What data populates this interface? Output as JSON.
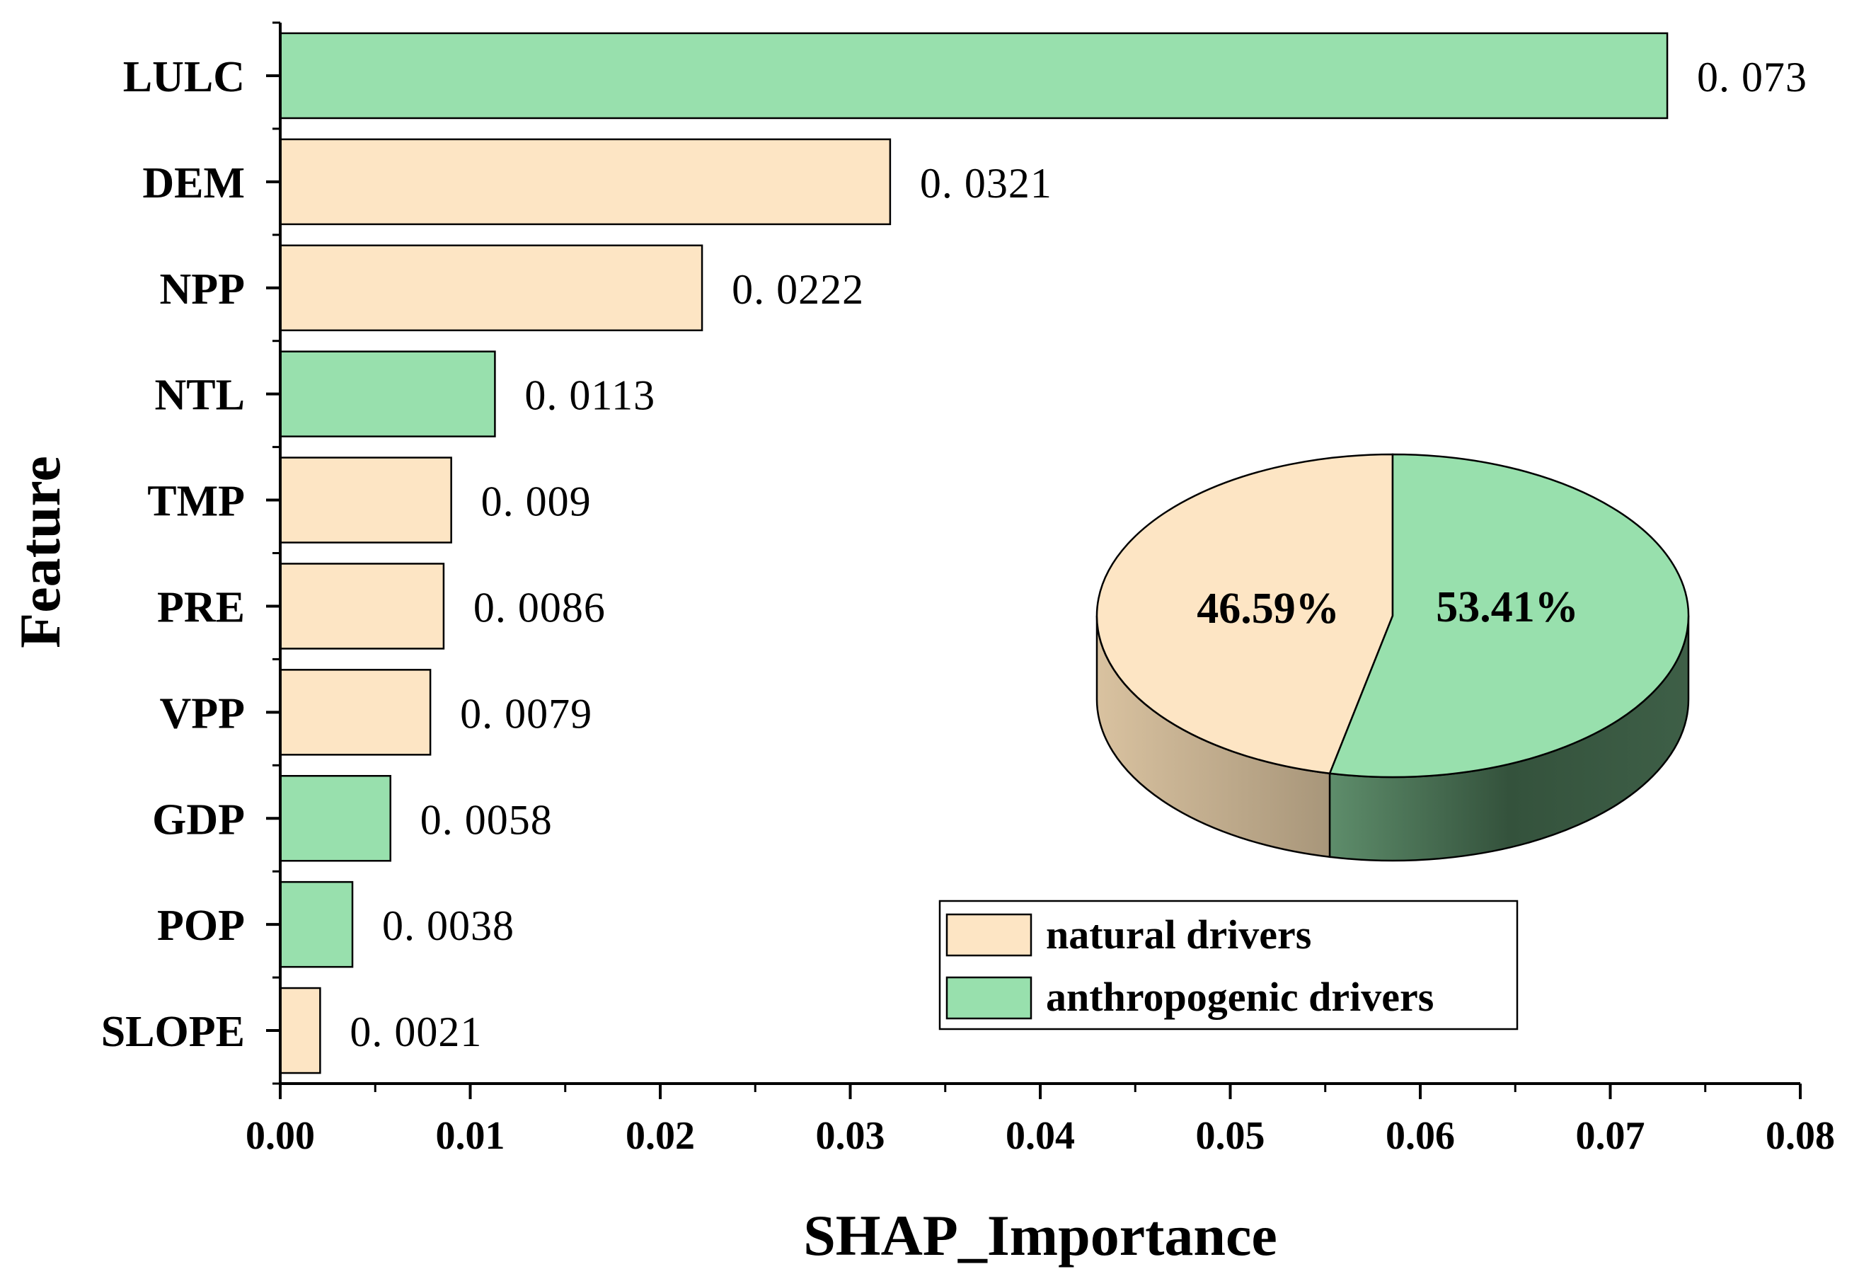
{
  "chart_data": {
    "type": "bar",
    "orientation": "horizontal",
    "xlabel": "SHAP_Importance",
    "ylabel": "Feature",
    "xlim": [
      0,
      0.08
    ],
    "xticks": [
      0.0,
      0.01,
      0.02,
      0.03,
      0.04,
      0.05,
      0.06,
      0.07,
      0.08
    ],
    "xtick_labels": [
      "0.00",
      "0.01",
      "0.02",
      "0.03",
      "0.04",
      "0.05",
      "0.06",
      "0.07",
      "0.08"
    ],
    "categories": [
      "LULC",
      "DEM",
      "NPP",
      "NTL",
      "TMP",
      "PRE",
      "VPP",
      "GDP",
      "POP",
      "SLOPE"
    ],
    "values": [
      0.073,
      0.0321,
      0.0222,
      0.0113,
      0.009,
      0.0086,
      0.0079,
      0.0058,
      0.0038,
      0.0021
    ],
    "value_labels": [
      "0. 073",
      "0. 0321",
      "0. 0222",
      "0. 0113",
      "0. 009",
      "0. 0086",
      "0. 0079",
      "0. 0058",
      "0. 0038",
      "0. 0021"
    ],
    "groups": [
      "anthropogenic",
      "natural",
      "natural",
      "anthropogenic",
      "natural",
      "natural",
      "natural",
      "anthropogenic",
      "anthropogenic",
      "natural"
    ],
    "group_colors": {
      "natural": "#FDE5C4",
      "anthropogenic": "#98E0AD"
    },
    "legend": [
      {
        "group": "natural",
        "label": "natural drivers"
      },
      {
        "group": "anthropogenic",
        "label": "anthropogenic drivers"
      }
    ],
    "legend_position": "bottom-right",
    "pie": {
      "type": "pie-3d",
      "slices": [
        {
          "group": "natural",
          "value": 46.59,
          "label": "46.59%"
        },
        {
          "group": "anthropogenic",
          "value": 53.41,
          "label": "53.41%"
        }
      ],
      "side_colors": {
        "natural": "#C9B08E",
        "anthropogenic": "#3E6A4B"
      }
    }
  }
}
